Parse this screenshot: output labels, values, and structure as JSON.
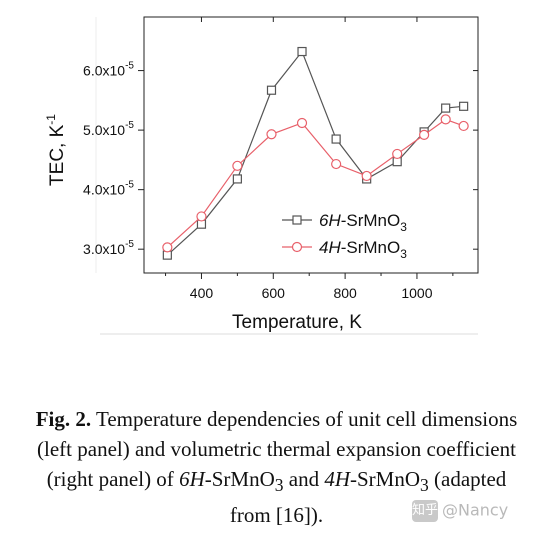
{
  "chart_data": {
    "type": "line",
    "xlabel": "Temperature, K",
    "ylabel": "TEC, K",
    "ylabel_sup": "-1",
    "xlim": [
      240,
      1170
    ],
    "ylim": [
      2.6e-05,
      6.9e-05
    ],
    "x_ticks": [
      400,
      600,
      800,
      1000
    ],
    "x_tick_labels": [
      "400",
      "600",
      "800",
      "1000"
    ],
    "y_ticks": [
      3e-05,
      4e-05,
      5e-05,
      6e-05
    ],
    "y_tick_labels": [
      {
        "mantissa": "3.0x10",
        "exp": "-5"
      },
      {
        "mantissa": "4.0x10",
        "exp": "-5"
      },
      {
        "mantissa": "5.0x10",
        "exp": "-5"
      },
      {
        "mantissa": "6.0x10",
        "exp": "-5"
      }
    ],
    "series": [
      {
        "name": "6H-SrMnO3",
        "legend": {
          "italic": "6H",
          "rest": "-SrMnO",
          "sub": "3"
        },
        "marker": "square",
        "color": "#555555",
        "x": [
          305,
          400,
          500,
          595,
          680,
          775,
          860,
          945,
          1020,
          1080,
          1130
        ],
        "y": [
          2.9e-05,
          3.42e-05,
          4.18e-05,
          5.67e-05,
          6.32e-05,
          4.85e-05,
          4.18e-05,
          4.47e-05,
          4.97e-05,
          5.37e-05,
          5.4e-05
        ]
      },
      {
        "name": "4H-SrMnO3",
        "legend": {
          "italic": "4H",
          "rest": "-SrMnO",
          "sub": "3"
        },
        "marker": "circle",
        "color": "#e8606a",
        "x": [
          305,
          400,
          500,
          595,
          680,
          775,
          860,
          945,
          1020,
          1080,
          1130
        ],
        "y": [
          3.03e-05,
          3.55e-05,
          4.4e-05,
          4.93e-05,
          5.12e-05,
          4.43e-05,
          4.23e-05,
          4.6e-05,
          4.92e-05,
          5.18e-05,
          5.07e-05
        ]
      }
    ]
  },
  "caption": {
    "label": "Fig. 2.",
    "text_1": " Temperature dependencies of unit cell dimensions (left panel) and volumetric thermal expansion coefficient (right panel) of ",
    "s1_italic": "6H",
    "s1_rest": "-SrMnO",
    "s1_sub": "3",
    "text_2": " and ",
    "s2_italic": "4H",
    "s2_rest": "-SrMnO",
    "s2_sub": "3",
    "text_3": " (adapted from [16])."
  },
  "watermark": {
    "icon_text": "知乎",
    "text": "@Nancy"
  }
}
